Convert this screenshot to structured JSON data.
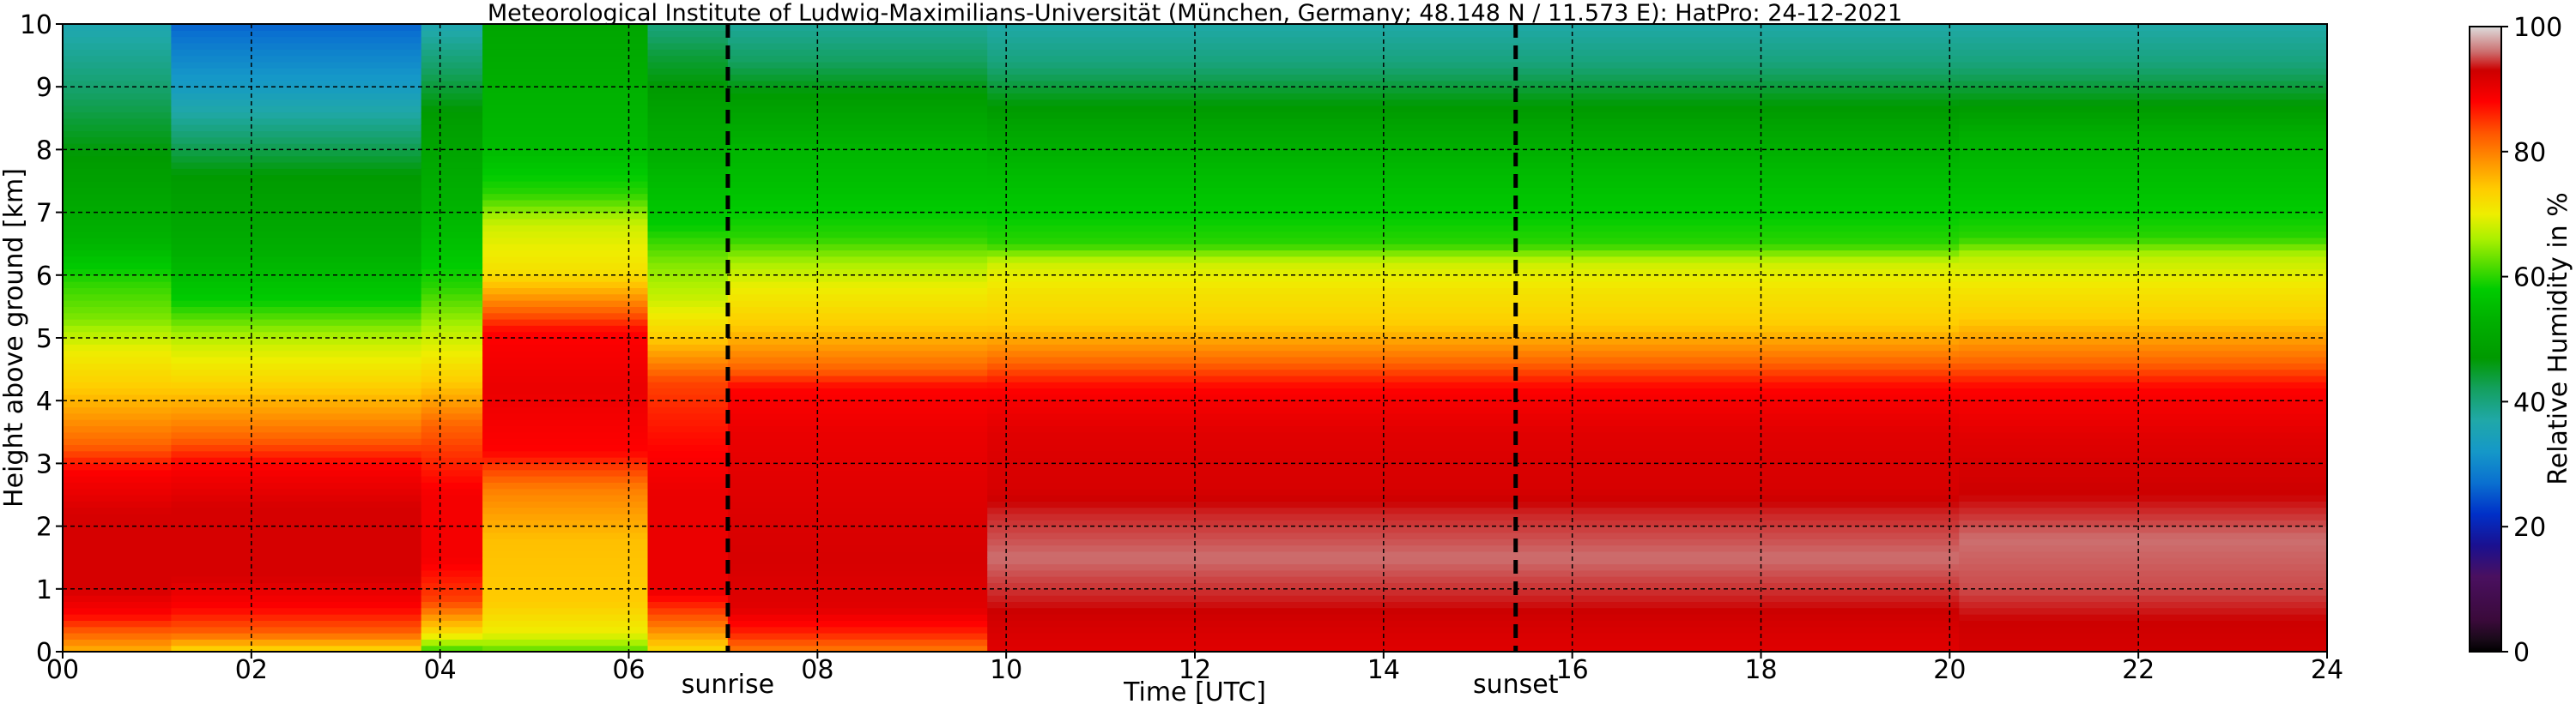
{
  "chart_data": {
    "type": "heatmap",
    "title": "Meteorological Institute of Ludwig-Maximilians-Universität (München, Germany; 48.148 N / 11.573 E):    HatPro: 24-12-2021",
    "xlabel": "Time [UTC]",
    "ylabel": "Height above ground [km]",
    "xlim": [
      0,
      24
    ],
    "ylim": [
      0,
      10
    ],
    "x_ticks": [
      {
        "value": 0,
        "label": "00"
      },
      {
        "value": 2,
        "label": "02"
      },
      {
        "value": 4,
        "label": "04"
      },
      {
        "value": 6,
        "label": "06"
      },
      {
        "value": 8,
        "label": "08"
      },
      {
        "value": 10,
        "label": "10"
      },
      {
        "value": 12,
        "label": "12"
      },
      {
        "value": 14,
        "label": "14"
      },
      {
        "value": 16,
        "label": "16"
      },
      {
        "value": 18,
        "label": "18"
      },
      {
        "value": 20,
        "label": "20"
      },
      {
        "value": 22,
        "label": "22"
      },
      {
        "value": 24,
        "label": "24"
      }
    ],
    "y_ticks": [
      0,
      1,
      2,
      3,
      4,
      5,
      6,
      7,
      8,
      9,
      10
    ],
    "grid": true,
    "events": [
      {
        "name": "sunrise",
        "time": 7.05
      },
      {
        "name": "sunset",
        "time": 15.4
      }
    ],
    "colorbar": {
      "label": "Relative Humidity in %",
      "range": [
        0,
        100
      ],
      "ticks": [
        0,
        20,
        40,
        60,
        80,
        100
      ],
      "stops": [
        {
          "v": 0,
          "color": "#000000"
        },
        {
          "v": 2,
          "color": "#1a0a1a"
        },
        {
          "v": 5,
          "color": "#3a0a3a"
        },
        {
          "v": 12,
          "color": "#4a1060"
        },
        {
          "v": 17,
          "color": "#1a1090"
        },
        {
          "v": 22,
          "color": "#0030c8"
        },
        {
          "v": 27,
          "color": "#0a70d0"
        },
        {
          "v": 32,
          "color": "#1598c8"
        },
        {
          "v": 37,
          "color": "#20a8a8"
        },
        {
          "v": 42,
          "color": "#14a060"
        },
        {
          "v": 47,
          "color": "#009a00"
        },
        {
          "v": 53,
          "color": "#00b000"
        },
        {
          "v": 58,
          "color": "#00cc00"
        },
        {
          "v": 62,
          "color": "#55dd00"
        },
        {
          "v": 66,
          "color": "#aaf000"
        },
        {
          "v": 70,
          "color": "#eeee00"
        },
        {
          "v": 74,
          "color": "#ffcc00"
        },
        {
          "v": 78,
          "color": "#ff9900"
        },
        {
          "v": 83,
          "color": "#ff5500"
        },
        {
          "v": 88,
          "color": "#ff0000"
        },
        {
          "v": 93,
          "color": "#cc0000"
        },
        {
          "v": 96,
          "color": "#cc7070"
        },
        {
          "v": 100,
          "color": "#dddddd"
        }
      ]
    },
    "humidity_profiles": [
      {
        "t_start": 0,
        "t_end": 1.15,
        "profile": [
          [
            0,
            76
          ],
          [
            0.3,
            82
          ],
          [
            0.6,
            88
          ],
          [
            1,
            92
          ],
          [
            2.2,
            92
          ],
          [
            2.9,
            88
          ],
          [
            3.3,
            82
          ],
          [
            4.2,
            74
          ],
          [
            4.8,
            70
          ],
          [
            5.3,
            64
          ],
          [
            5.9,
            60
          ],
          [
            6.5,
            54
          ],
          [
            7.5,
            49
          ],
          [
            8.3,
            45
          ],
          [
            9.2,
            40
          ],
          [
            10,
            36
          ]
        ]
      },
      {
        "t_start": 1.15,
        "t_end": 3.8,
        "profile": [
          [
            0,
            72
          ],
          [
            0.3,
            82
          ],
          [
            0.7,
            88
          ],
          [
            1.2,
            92
          ],
          [
            2.3,
            92
          ],
          [
            3.0,
            88
          ],
          [
            3.4,
            82
          ],
          [
            4.4,
            72
          ],
          [
            4.9,
            68
          ],
          [
            5.6,
            58
          ],
          [
            6.5,
            52
          ],
          [
            7.6,
            47
          ],
          [
            8.3,
            40
          ],
          [
            9.0,
            33
          ],
          [
            9.6,
            29
          ],
          [
            10,
            26
          ]
        ]
      },
      {
        "t_start": 3.8,
        "t_end": 4.45,
        "profile": [
          [
            0,
            60
          ],
          [
            0.3,
            72
          ],
          [
            0.8,
            84
          ],
          [
            1.5,
            89
          ],
          [
            2.5,
            89
          ],
          [
            3.0,
            86
          ],
          [
            3.6,
            82
          ],
          [
            4.3,
            74
          ],
          [
            5.0,
            68
          ],
          [
            5.8,
            60
          ],
          [
            6.5,
            56
          ],
          [
            7.5,
            52
          ],
          [
            8.5,
            48
          ],
          [
            9.5,
            40
          ],
          [
            10,
            36
          ]
        ]
      },
      {
        "t_start": 4.45,
        "t_end": 6.2,
        "profile": [
          [
            0,
            62
          ],
          [
            0.3,
            70
          ],
          [
            0.8,
            74
          ],
          [
            1.8,
            75
          ],
          [
            2.6,
            80
          ],
          [
            3.2,
            88
          ],
          [
            4.2,
            90
          ],
          [
            5.1,
            88
          ],
          [
            6.0,
            72
          ],
          [
            6.8,
            68
          ],
          [
            7.3,
            60
          ],
          [
            8.0,
            55
          ],
          [
            9.0,
            53
          ],
          [
            10,
            50
          ]
        ]
      },
      {
        "t_start": 6.2,
        "t_end": 7.05,
        "profile": [
          [
            0,
            72
          ],
          [
            0.5,
            82
          ],
          [
            1,
            90
          ],
          [
            2.5,
            90
          ],
          [
            3.2,
            88
          ],
          [
            3.8,
            86
          ],
          [
            4.3,
            84
          ],
          [
            5.0,
            74
          ],
          [
            5.6,
            68
          ],
          [
            6.2,
            64
          ],
          [
            6.8,
            58
          ],
          [
            7.5,
            55
          ],
          [
            8.5,
            50
          ],
          [
            9.5,
            44
          ],
          [
            10,
            40
          ]
        ]
      },
      {
        "t_start": 7.05,
        "t_end": 9.8,
        "profile": [
          [
            0,
            80
          ],
          [
            0.3,
            86
          ],
          [
            0.7,
            91
          ],
          [
            1.5,
            92
          ],
          [
            2.6,
            91
          ],
          [
            3.5,
            90
          ],
          [
            4.2,
            88
          ],
          [
            4.5,
            82
          ],
          [
            5.2,
            74
          ],
          [
            5.8,
            70
          ],
          [
            6.2,
            66
          ],
          [
            6.6,
            60
          ],
          [
            7.4,
            56
          ],
          [
            8.0,
            54
          ],
          [
            8.8,
            48
          ],
          [
            9.4,
            42
          ],
          [
            10,
            38
          ]
        ]
      },
      {
        "t_start": 9.8,
        "t_end": 20.1,
        "profile": [
          [
            0,
            91
          ],
          [
            0.4,
            92
          ],
          [
            0.9,
            94
          ],
          [
            1.5,
            96
          ],
          [
            2.2,
            94
          ],
          [
            2.6,
            92
          ],
          [
            3.5,
            91
          ],
          [
            4.2,
            88
          ],
          [
            4.6,
            82
          ],
          [
            5.2,
            74
          ],
          [
            5.8,
            71
          ],
          [
            6.2,
            68
          ],
          [
            6.5,
            60
          ],
          [
            7.4,
            56
          ],
          [
            8.0,
            53
          ],
          [
            8.8,
            46
          ],
          [
            9.4,
            40
          ],
          [
            10,
            37
          ]
        ]
      },
      {
        "t_start": 20.1,
        "t_end": 24,
        "profile": [
          [
            0,
            92
          ],
          [
            0.5,
            93
          ],
          [
            1,
            95
          ],
          [
            1.8,
            96
          ],
          [
            2.5,
            93
          ],
          [
            3.4,
            91
          ],
          [
            4.2,
            88
          ],
          [
            4.6,
            82
          ],
          [
            5.3,
            74
          ],
          [
            5.8,
            71
          ],
          [
            6.3,
            67
          ],
          [
            6.6,
            60
          ],
          [
            7.4,
            56
          ],
          [
            8.2,
            53
          ],
          [
            8.8,
            46
          ],
          [
            9.4,
            40
          ],
          [
            10,
            37
          ]
        ]
      }
    ]
  }
}
